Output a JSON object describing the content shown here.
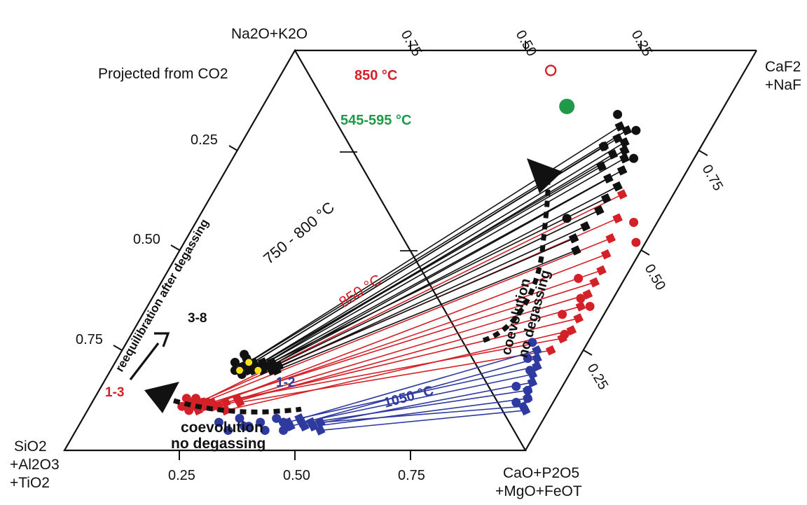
{
  "chart_data": {
    "type": "scatter",
    "subtype": "ternary-tetrahedral-projection",
    "projection_note": "Projected from CO2",
    "vertices": {
      "left": [
        "SiO2",
        "+Al2O3",
        "+TiO2"
      ],
      "bottom_right": [
        "CaO+P2O5",
        "+MgO+FeOT"
      ],
      "top_left": "Na2O+K2O",
      "top_right": [
        "CaF2",
        "+NaF"
      ]
    },
    "tick_labels": {
      "bottom": [
        "0.25",
        "0.50",
        "0.75"
      ],
      "top": [
        "0.75",
        "0.50",
        "0.25"
      ],
      "left": [
        "0.25",
        "0.50",
        "0.75"
      ],
      "right": [
        "0.75",
        "0.50",
        "0.25"
      ]
    },
    "annotations": {
      "t850_top": "850 °C",
      "t545": "545-595 °C",
      "t750": "750 - 800 °C",
      "t850_mid": "850 °C",
      "t1050": "1050 °C",
      "g38": "3-8",
      "g13": "1-3",
      "g12": "1-2",
      "reequil": "reequilibration after degassing",
      "coevo_right_1": "coevolution",
      "coevo_right_2": "no degassing",
      "coevo_bottom_1": "coevolution",
      "coevo_bottom_2": "no degassing"
    },
    "colors": {
      "black_series": "#111111",
      "red_series": "#d42027",
      "blue_series": "#2e3a9f",
      "green_point": "#1f9a48",
      "yellow_point": "#f5e11a"
    },
    "tie_lines_black": [
      {
        "from": [
          0.28,
          0.21
        ],
        "to": [
          0.8,
          0.81
        ]
      },
      {
        "from": [
          0.29,
          0.22
        ],
        "to": [
          0.82,
          0.8
        ]
      },
      {
        "from": [
          0.29,
          0.21
        ],
        "to": [
          0.81,
          0.78
        ]
      },
      {
        "from": [
          0.3,
          0.2
        ],
        "to": [
          0.83,
          0.77
        ]
      },
      {
        "from": [
          0.3,
          0.22
        ],
        "to": [
          0.79,
          0.76
        ]
      },
      {
        "from": [
          0.31,
          0.21
        ],
        "to": [
          0.84,
          0.75
        ]
      },
      {
        "from": [
          0.31,
          0.2
        ],
        "to": [
          0.82,
          0.74
        ]
      },
      {
        "from": [
          0.32,
          0.21
        ],
        "to": [
          0.85,
          0.73
        ]
      },
      {
        "from": [
          0.32,
          0.22
        ],
        "to": [
          0.81,
          0.71
        ]
      },
      {
        "from": [
          0.33,
          0.21
        ],
        "to": [
          0.86,
          0.7
        ]
      },
      {
        "from": [
          0.33,
          0.2
        ],
        "to": [
          0.84,
          0.68
        ]
      },
      {
        "from": [
          0.34,
          0.21
        ],
        "to": [
          0.87,
          0.66
        ]
      },
      {
        "from": [
          0.34,
          0.22
        ],
        "to": [
          0.86,
          0.63
        ]
      },
      {
        "from": [
          0.35,
          0.21
        ],
        "to": [
          0.86,
          0.6
        ]
      },
      {
        "from": [
          0.35,
          0.2
        ],
        "to": [
          0.85,
          0.56
        ]
      },
      {
        "from": [
          0.36,
          0.21
        ],
        "to": [
          0.84,
          0.53
        ]
      },
      {
        "from": [
          0.36,
          0.2
        ],
        "to": [
          0.86,
          0.5
        ]
      }
    ],
    "tie_lines_red": [
      {
        "from": [
          0.22,
          0.11
        ],
        "to": [
          0.89,
          0.64
        ]
      },
      {
        "from": [
          0.23,
          0.12
        ],
        "to": [
          0.91,
          0.58
        ]
      },
      {
        "from": [
          0.24,
          0.12
        ],
        "to": [
          0.92,
          0.53
        ]
      },
      {
        "from": [
          0.24,
          0.1
        ],
        "to": [
          0.93,
          0.49
        ]
      },
      {
        "from": [
          0.25,
          0.11
        ],
        "to": [
          0.94,
          0.45
        ]
      },
      {
        "from": [
          0.26,
          0.12
        ],
        "to": [
          0.94,
          0.42
        ]
      },
      {
        "from": [
          0.27,
          0.11
        ],
        "to": [
          0.94,
          0.39
        ]
      },
      {
        "from": [
          0.28,
          0.11
        ],
        "to": [
          0.94,
          0.36
        ]
      },
      {
        "from": [
          0.29,
          0.12
        ],
        "to": [
          0.95,
          0.33
        ]
      },
      {
        "from": [
          0.3,
          0.1
        ],
        "to": [
          0.95,
          0.3
        ]
      },
      {
        "from": [
          0.31,
          0.13
        ],
        "to": [
          0.94,
          0.28
        ]
      },
      {
        "from": [
          0.32,
          0.12
        ],
        "to": [
          0.93,
          0.25
        ]
      }
    ],
    "tie_lines_blue": [
      {
        "from": [
          0.45,
          0.07
        ],
        "to": [
          0.9,
          0.25
        ]
      },
      {
        "from": [
          0.46,
          0.06
        ],
        "to": [
          0.91,
          0.23
        ]
      },
      {
        "from": [
          0.47,
          0.08
        ],
        "to": [
          0.92,
          0.21
        ]
      },
      {
        "from": [
          0.48,
          0.07
        ],
        "to": [
          0.92,
          0.19
        ]
      },
      {
        "from": [
          0.49,
          0.06
        ],
        "to": [
          0.93,
          0.17
        ]
      },
      {
        "from": [
          0.5,
          0.07
        ],
        "to": [
          0.93,
          0.15
        ]
      },
      {
        "from": [
          0.51,
          0.06
        ],
        "to": [
          0.94,
          0.13
        ]
      },
      {
        "from": [
          0.52,
          0.07
        ],
        "to": [
          0.94,
          0.11
        ]
      },
      {
        "from": [
          0.53,
          0.05
        ],
        "to": [
          0.95,
          0.1
        ]
      }
    ],
    "black_circles": [
      [
        0.26,
        0.22
      ],
      [
        0.27,
        0.2
      ],
      [
        0.28,
        0.23
      ],
      [
        0.29,
        0.19
      ],
      [
        0.27,
        0.24
      ],
      [
        0.78,
        0.84
      ],
      [
        0.79,
        0.76
      ],
      [
        0.84,
        0.8
      ],
      [
        0.87,
        0.73
      ],
      [
        0.8,
        0.58
      ]
    ],
    "red_circles": [
      [
        0.2,
        0.11
      ],
      [
        0.21,
        0.12
      ],
      [
        0.22,
        0.13
      ],
      [
        0.23,
        0.11
      ],
      [
        0.24,
        0.12
      ],
      [
        0.22,
        0.1
      ],
      [
        0.25,
        0.12
      ],
      [
        0.2,
        0.13
      ],
      [
        0.95,
        0.57
      ],
      [
        0.98,
        0.52
      ],
      [
        0.9,
        0.43
      ],
      [
        0.93,
        0.38
      ],
      [
        0.96,
        0.36
      ],
      [
        0.91,
        0.34
      ],
      [
        0.94,
        0.29
      ]
    ],
    "blue_circles": [
      [
        0.3,
        0.07
      ],
      [
        0.34,
        0.08
      ],
      [
        0.37,
        0.06
      ],
      [
        0.39,
        0.07
      ],
      [
        0.42,
        0.08
      ],
      [
        0.36,
        0.06
      ],
      [
        0.41,
        0.05
      ],
      [
        0.44,
        0.07
      ],
      [
        0.45,
        0.05
      ],
      [
        0.33,
        0.05
      ],
      [
        0.88,
        0.27
      ],
      [
        0.89,
        0.23
      ],
      [
        0.91,
        0.2
      ],
      [
        0.93,
        0.15
      ],
      [
        0.92,
        0.12
      ],
      [
        0.94,
        0.13
      ],
      [
        0.9,
        0.16
      ]
    ],
    "yellow_points": [
      [
        0.29,
        0.22
      ],
      [
        0.28,
        0.2
      ],
      [
        0.32,
        0.2
      ]
    ],
    "green_point": [
      0.66,
      0.86
    ],
    "open_red_circle": [
      0.58,
      0.95
    ],
    "black_triangle_endpoints": {
      "bottom_left": [
        0.22,
        0.11
      ],
      "top_right": [
        0.86,
        0.62
      ]
    }
  }
}
